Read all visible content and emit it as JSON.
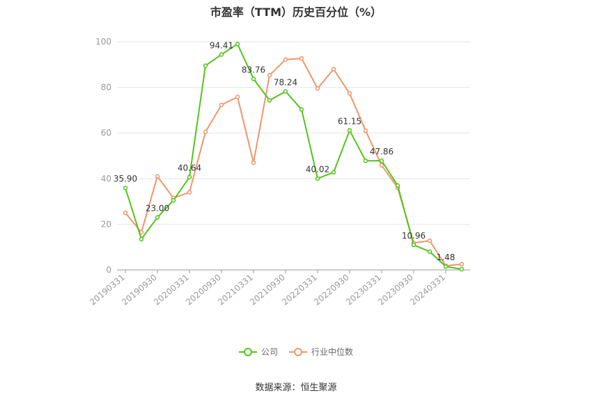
{
  "chart_data": {
    "type": "line",
    "title": "市盈率（TTM）历史百分位（%）",
    "xlabel": "",
    "ylabel": "",
    "ylim": [
      0,
      100
    ],
    "yticks": [
      0,
      20,
      40,
      60,
      80,
      100
    ],
    "grid": true,
    "legend_position": "bottom",
    "categories": [
      "20190331",
      "20190630",
      "20190930",
      "20191231",
      "20200331",
      "20200630",
      "20200930",
      "20201231",
      "20210331",
      "20210630",
      "20210930",
      "20211231",
      "20220331",
      "20220630",
      "20220930",
      "20221231",
      "20230331",
      "20230630",
      "20230930",
      "20231231",
      "20240331",
      "20240630"
    ],
    "tick_labels": [
      "20190331",
      "20190930",
      "20200331",
      "20200930",
      "20210331",
      "20210930",
      "20220331",
      "20220930",
      "20230331",
      "20230930",
      "20240331"
    ],
    "series": [
      {
        "name": "公司",
        "color": "#52c41a",
        "values": [
          35.9,
          13.5,
          23.0,
          30.5,
          40.64,
          89.5,
          94.41,
          99.0,
          83.76,
          74.3,
          78.24,
          70.3,
          40.02,
          42.8,
          61.15,
          47.8,
          47.86,
          37.0,
          10.96,
          8.0,
          1.48,
          0.3
        ]
      },
      {
        "name": "行业中位数",
        "color": "#f0956a",
        "values": [
          25.0,
          16.5,
          41.0,
          31.5,
          34.0,
          60.5,
          72.3,
          75.8,
          47.0,
          85.3,
          92.2,
          92.7,
          79.5,
          88.0,
          77.3,
          61.0,
          45.8,
          36.0,
          11.8,
          12.8,
          1.8,
          2.5
        ]
      }
    ],
    "annotations": [
      {
        "index": 0,
        "text": "35.90"
      },
      {
        "index": 2,
        "text": "23.00"
      },
      {
        "index": 4,
        "text": "40.64"
      },
      {
        "index": 6,
        "text": "94.41"
      },
      {
        "index": 8,
        "text": "83.76"
      },
      {
        "index": 10,
        "text": "78.24"
      },
      {
        "index": 12,
        "text": "40.02"
      },
      {
        "index": 14,
        "text": "61.15"
      },
      {
        "index": 16,
        "text": "47.86"
      },
      {
        "index": 18,
        "text": "10.96"
      },
      {
        "index": 20,
        "text": "1.48"
      }
    ]
  },
  "legend": {
    "items": [
      {
        "label": "公司",
        "color": "#52c41a"
      },
      {
        "label": "行业中位数",
        "color": "#f0956a"
      }
    ]
  },
  "source": "数据来源：恒生聚源"
}
